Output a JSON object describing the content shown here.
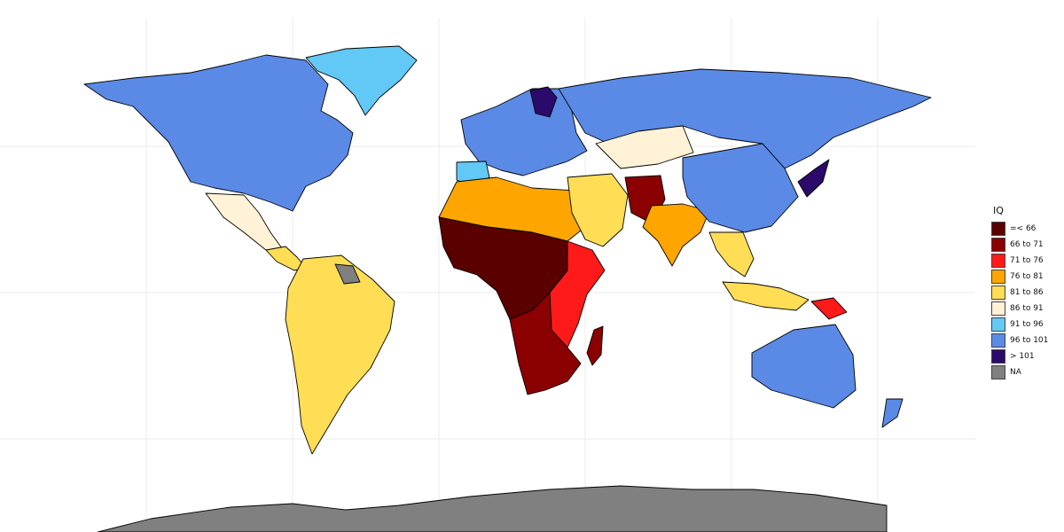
{
  "legend": {
    "title": "IQ",
    "items": [
      {
        "label": "=< 66",
        "color": "#5a0000"
      },
      {
        "label": "66 to 71",
        "color": "#8b0000"
      },
      {
        "label": "71 to 76",
        "color": "#ff1a1a"
      },
      {
        "label": "76 to 81",
        "color": "#ffa500"
      },
      {
        "label": "81 to 86",
        "color": "#ffdd55"
      },
      {
        "label": "86 to 91",
        "color": "#fff2d6"
      },
      {
        "label": "91 to 96",
        "color": "#62c8f5"
      },
      {
        "label": "96 to 101",
        "color": "#5a8ae6"
      },
      {
        "label": "> 101",
        "color": "#2c0a6b"
      },
      {
        "label": "NA",
        "color": "#808080"
      }
    ]
  },
  "regions": [
    {
      "name": "north-america",
      "category": "96 to 101"
    },
    {
      "name": "greenland",
      "category": "91 to 96"
    },
    {
      "name": "mexico",
      "category": "86 to 91"
    },
    {
      "name": "central-america",
      "category": "81 to 86"
    },
    {
      "name": "south-america",
      "category": "81 to 86"
    },
    {
      "name": "guianas",
      "category": "NA"
    },
    {
      "name": "europe",
      "category": "96 to 101"
    },
    {
      "name": "iberia",
      "category": "91 to 96"
    },
    {
      "name": "finland",
      "category": "> 101"
    },
    {
      "name": "russia",
      "category": "96 to 101"
    },
    {
      "name": "north-africa",
      "category": "76 to 81"
    },
    {
      "name": "west-central-africa",
      "category": "=< 66"
    },
    {
      "name": "east-africa",
      "category": "71 to 76"
    },
    {
      "name": "southern-africa",
      "category": "66 to 71"
    },
    {
      "name": "madagascar",
      "category": "66 to 71"
    },
    {
      "name": "arabia",
      "category": "81 to 86"
    },
    {
      "name": "pakistan",
      "category": "66 to 71"
    },
    {
      "name": "india",
      "category": "76 to 81"
    },
    {
      "name": "kazakhstan",
      "category": "86 to 91"
    },
    {
      "name": "china",
      "category": "96 to 101"
    },
    {
      "name": "japan-korea",
      "category": "> 101"
    },
    {
      "name": "southeast-asia",
      "category": "81 to 86"
    },
    {
      "name": "indonesia",
      "category": "81 to 86"
    },
    {
      "name": "papua-new-guinea",
      "category": "71 to 76"
    },
    {
      "name": "australia",
      "category": "96 to 101"
    },
    {
      "name": "new-zealand",
      "category": "96 to 101"
    },
    {
      "name": "antarctica",
      "category": "NA"
    }
  ]
}
